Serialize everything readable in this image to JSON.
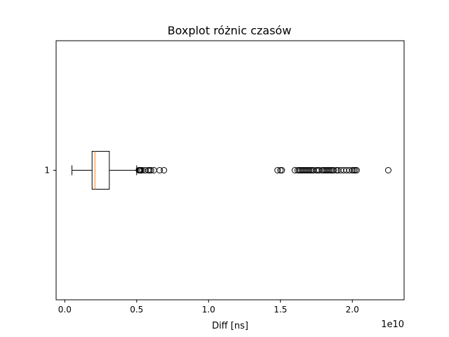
{
  "chart_data": {
    "type": "boxplot",
    "orientation": "horizontal",
    "title": "Boxplot różnic czasów",
    "xlabel": "Diff [ns]",
    "ylabel": "",
    "x_offset_label": "1e10",
    "x_ticks": [
      {
        "value": 0.0,
        "label": "0.0"
      },
      {
        "value": 0.5,
        "label": "0.5"
      },
      {
        "value": 1.0,
        "label": "1.0"
      },
      {
        "value": 1.5,
        "label": "1.5"
      },
      {
        "value": 2.0,
        "label": "2.0"
      }
    ],
    "y_ticks": [
      {
        "value": 1,
        "label": "1"
      }
    ],
    "xlim": [
      -0.06,
      2.36
    ],
    "ylim": [
      0.5,
      1.5
    ],
    "box": {
      "category": "1",
      "whisker_low": 0.05,
      "q1": 0.19,
      "median": 0.21,
      "q3": 0.31,
      "whisker_high": 0.5,
      "outliers": [
        0.515,
        0.52,
        0.525,
        0.53,
        0.54,
        0.56,
        0.58,
        0.59,
        0.6,
        0.62,
        0.66,
        0.69,
        1.48,
        1.5,
        1.51,
        1.6,
        1.62,
        1.63,
        1.64,
        1.65,
        1.66,
        1.67,
        1.68,
        1.69,
        1.7,
        1.71,
        1.72,
        1.73,
        1.75,
        1.76,
        1.77,
        1.79,
        1.8,
        1.81,
        1.82,
        1.83,
        1.84,
        1.85,
        1.86,
        1.87,
        1.89,
        1.9,
        1.92,
        1.94,
        1.96,
        1.98,
        2.0,
        2.01,
        2.02,
        2.03,
        2.25
      ]
    },
    "colors": {
      "median": "#ff7f0e",
      "box": "#000000",
      "outlier_edge": "#000000"
    },
    "grid": false,
    "legend": "none"
  }
}
